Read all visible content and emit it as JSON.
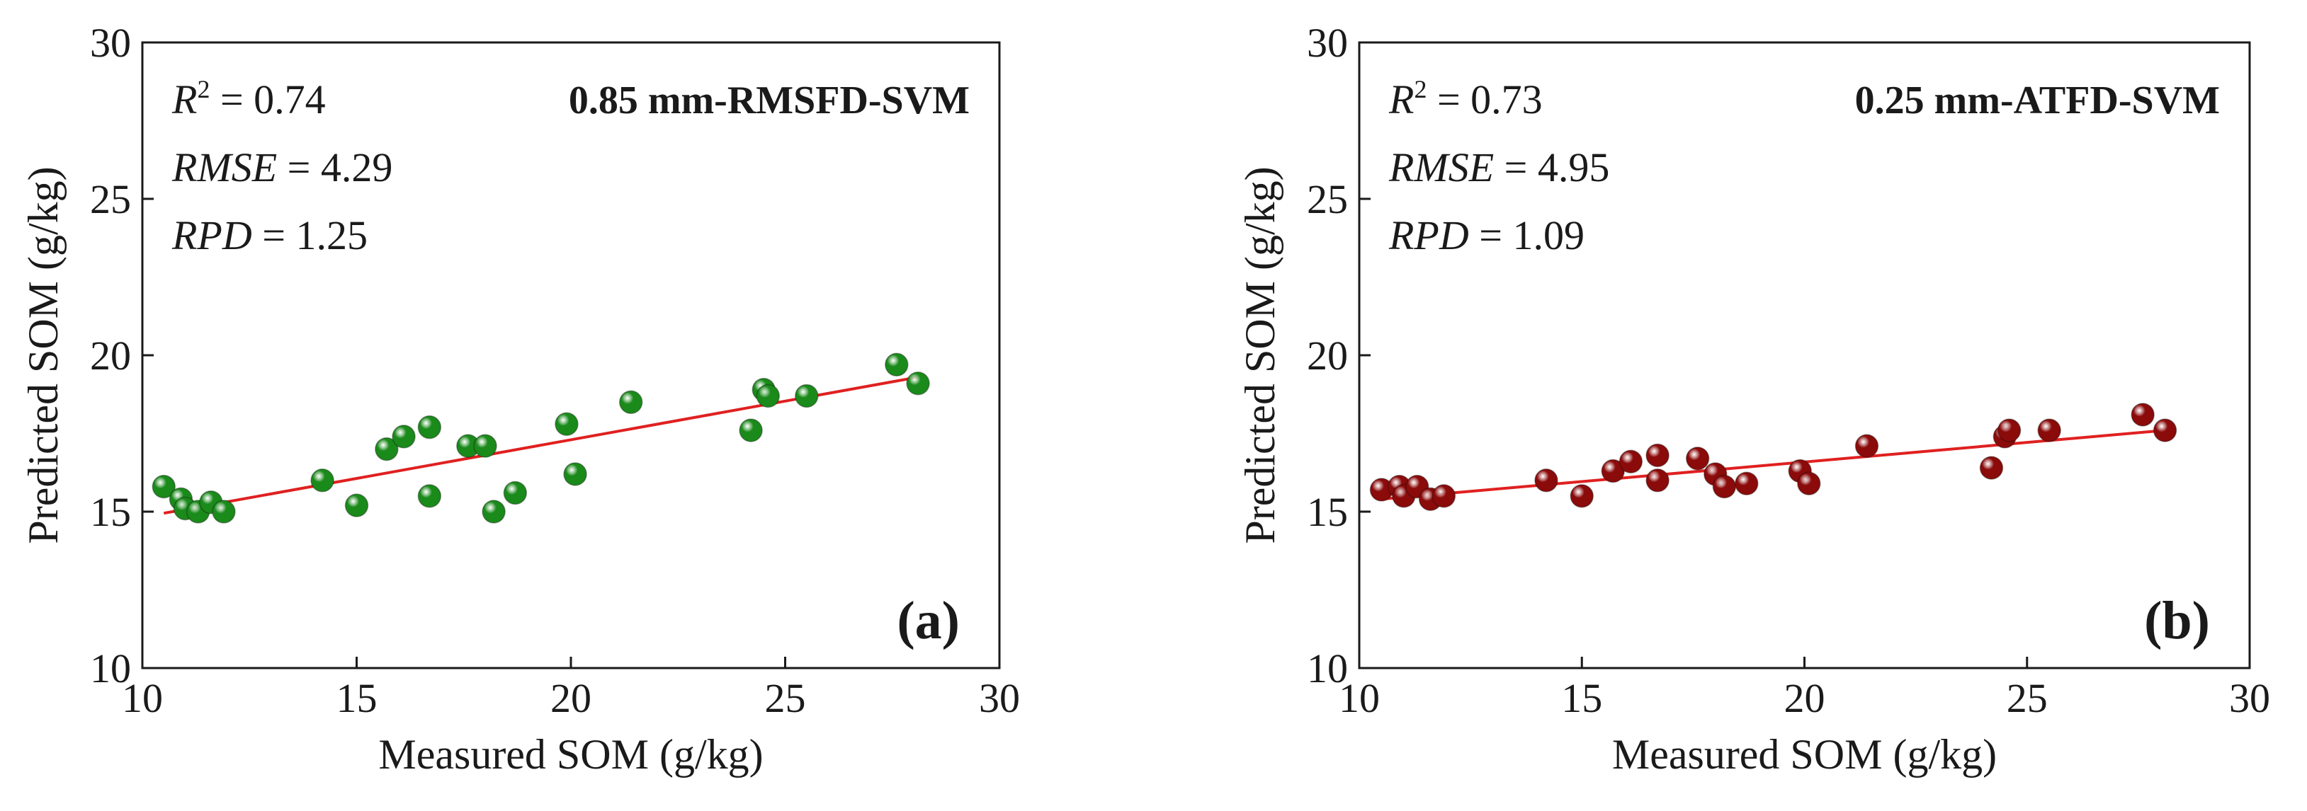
{
  "chart_data": [
    {
      "type": "scatter",
      "panel": "(a)",
      "title": "0.85 mm-RMSFD-SVM",
      "xlabel": "Measured SOM (g/kg)",
      "ylabel": "Predicted SOM (g/kg)",
      "xlim": [
        10,
        30
      ],
      "ylim": [
        10,
        30
      ],
      "xticks": [
        "10",
        "15",
        "20",
        "25",
        "30"
      ],
      "yticks": [
        "10",
        "15",
        "20",
        "25",
        "30"
      ],
      "stats": {
        "r2_label": "R",
        "r2_sup": "2",
        "r2_value": " = 0.74",
        "rmse_label": "RMSE",
        "rmse_value": " = 4.29",
        "rpd_label": "RPD",
        "rpd_value": " = 1.25"
      },
      "marker_color": "#1a8a1a",
      "fit_line_color": "#e02020",
      "fit_line": {
        "x": [
          10.5,
          28.1
        ],
        "y": [
          14.95,
          19.3
        ]
      },
      "points": {
        "x": [
          10.5,
          10.9,
          11.0,
          11.3,
          11.6,
          11.9,
          14.2,
          15.0,
          15.7,
          16.1,
          16.7,
          16.7,
          17.6,
          18.0,
          18.2,
          18.7,
          19.9,
          20.1,
          21.4,
          24.2,
          24.5,
          24.6,
          25.5,
          27.6,
          28.1
        ],
        "y": [
          15.8,
          15.4,
          15.1,
          15.0,
          15.3,
          15.0,
          16.0,
          15.2,
          17.0,
          17.4,
          15.5,
          17.7,
          17.1,
          17.1,
          15.0,
          15.6,
          17.8,
          16.2,
          18.5,
          17.6,
          18.9,
          18.7,
          18.7,
          19.7,
          19.1
        ]
      }
    },
    {
      "type": "scatter",
      "panel": "(b)",
      "title": "0.25 mm-ATFD-SVM",
      "xlabel": "Measured SOM (g/kg)",
      "ylabel": "Predicted SOM (g/kg)",
      "xlim": [
        10,
        30
      ],
      "ylim": [
        10,
        30
      ],
      "xticks": [
        "10",
        "15",
        "20",
        "25",
        "30"
      ],
      "yticks": [
        "10",
        "15",
        "20",
        "25",
        "30"
      ],
      "stats": {
        "r2_label": "R",
        "r2_sup": "2",
        "r2_value": " = 0.73",
        "rmse_label": "RMSE",
        "rmse_value": " = 4.95",
        "rpd_label": "RPD",
        "rpd_value": " = 1.09"
      },
      "marker_color": "#8b0a0a",
      "fit_line_color": "#e02020",
      "fit_line": {
        "x": [
          10.5,
          28.1
        ],
        "y": [
          15.4,
          17.6
        ]
      },
      "points": {
        "x": [
          10.5,
          10.9,
          11.0,
          11.3,
          11.6,
          11.9,
          14.2,
          15.0,
          15.7,
          16.1,
          16.7,
          16.7,
          17.6,
          18.0,
          18.2,
          18.7,
          19.9,
          20.1,
          21.4,
          24.2,
          24.5,
          24.6,
          25.5,
          27.6,
          28.1
        ],
        "y": [
          15.7,
          15.8,
          15.5,
          15.8,
          15.4,
          15.5,
          16.0,
          15.5,
          16.3,
          16.6,
          16.0,
          16.8,
          16.7,
          16.2,
          15.8,
          15.9,
          16.3,
          15.9,
          17.1,
          16.4,
          17.4,
          17.6,
          17.6,
          18.1,
          17.6
        ]
      }
    }
  ]
}
